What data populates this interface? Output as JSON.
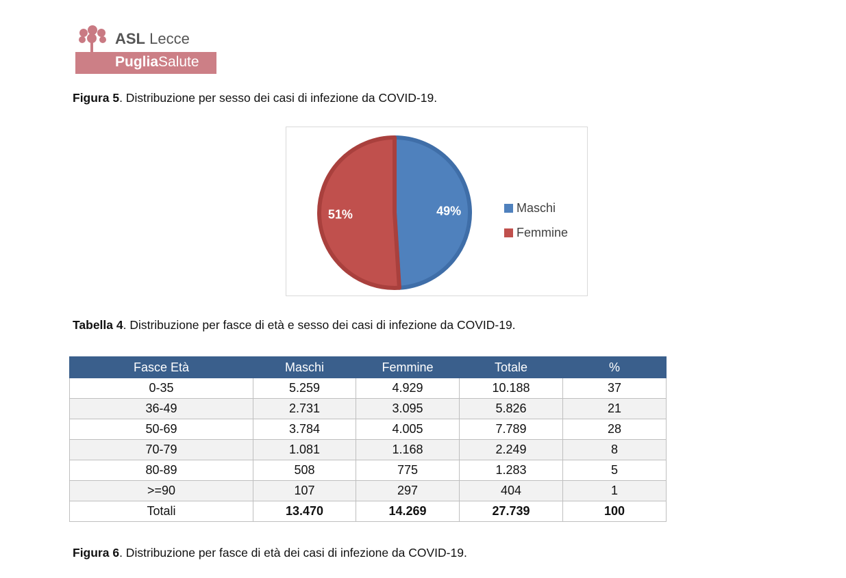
{
  "logo": {
    "line1_bold": "ASL",
    "line1": "Lecce",
    "line2_bold": "Puglia",
    "line2": "Salute"
  },
  "figure5": {
    "label": "Figura 5",
    "text": ". Distribuzione per sesso dei casi di infezione da COVID-19."
  },
  "chart_data": {
    "type": "pie",
    "title": "",
    "categories": [
      "Maschi",
      "Femmine"
    ],
    "values": [
      49,
      51
    ],
    "labels": [
      "49%",
      "51%"
    ],
    "colors": [
      "#4f81bd",
      "#c0504d"
    ],
    "legend": "right"
  },
  "table4": {
    "label": "Tabella 4",
    "text": ". Distribuzione per fasce di età e sesso dei casi di infezione da COVID-19.",
    "headers": [
      "Fasce Età",
      "Maschi",
      "Femmine",
      "Totale",
      "%"
    ],
    "rows": [
      [
        "0-35",
        "5.259",
        "4.929",
        "10.188",
        "37"
      ],
      [
        "36-49",
        "2.731",
        "3.095",
        "5.826",
        "21"
      ],
      [
        "50-69",
        "3.784",
        "4.005",
        "7.789",
        "28"
      ],
      [
        "70-79",
        "1.081",
        "1.168",
        "2.249",
        "8"
      ],
      [
        "80-89",
        "508",
        "775",
        "1.283",
        "5"
      ],
      [
        ">=90",
        "107",
        "297",
        "404",
        "1"
      ]
    ],
    "total": [
      "Totali",
      "13.470",
      "14.269",
      "27.739",
      "100"
    ]
  },
  "figure6": {
    "label": "Figura 6",
    "text": ". Distribuzione per fasce di età dei casi di infezione da COVID-19."
  }
}
